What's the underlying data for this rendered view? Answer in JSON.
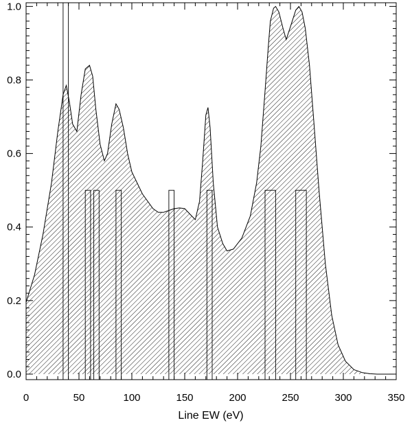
{
  "chart_data": {
    "type": "area",
    "title": "",
    "xlabel": "Line EW (eV)",
    "ylabel": "",
    "xlim": [
      0,
      350
    ],
    "ylim": [
      -0.015,
      1.01
    ],
    "xticks": [
      0,
      50,
      100,
      150,
      200,
      250,
      300,
      350
    ],
    "yticks": [
      0.0,
      0.2,
      0.4,
      0.6,
      0.8,
      1.0
    ],
    "xtick_labels": [
      "0",
      "50",
      "100",
      "150",
      "200",
      "250",
      "300",
      "350"
    ],
    "ytick_labels": [
      "0.0",
      "0.2",
      "0.4",
      "0.6",
      "0.8",
      "1.0"
    ],
    "grid": false,
    "fill": "diagonal-hatch",
    "curve": {
      "x": [
        0,
        8,
        16,
        24,
        30,
        35,
        38,
        41,
        44,
        48,
        52,
        56,
        60,
        63,
        66,
        70,
        74,
        77,
        81,
        85,
        88,
        92,
        96,
        100,
        110,
        120,
        125,
        130,
        135,
        140,
        145,
        150,
        155,
        160,
        164,
        167,
        170,
        172,
        174,
        177,
        181,
        186,
        190,
        196,
        204,
        212,
        218,
        222,
        226,
        229,
        231,
        234,
        236,
        239,
        243,
        246,
        250,
        255,
        258,
        261,
        264,
        268,
        272,
        277,
        283,
        289,
        295,
        302,
        310,
        318,
        325,
        332,
        340,
        348
      ],
      "y": [
        0.195,
        0.27,
        0.38,
        0.52,
        0.66,
        0.76,
        0.785,
        0.74,
        0.68,
        0.66,
        0.76,
        0.83,
        0.84,
        0.81,
        0.72,
        0.625,
        0.58,
        0.6,
        0.68,
        0.735,
        0.72,
        0.67,
        0.6,
        0.55,
        0.49,
        0.45,
        0.44,
        0.44,
        0.445,
        0.45,
        0.452,
        0.45,
        0.435,
        0.42,
        0.47,
        0.58,
        0.705,
        0.725,
        0.67,
        0.52,
        0.4,
        0.355,
        0.335,
        0.34,
        0.37,
        0.43,
        0.52,
        0.62,
        0.77,
        0.89,
        0.96,
        0.995,
        1.0,
        0.985,
        0.94,
        0.91,
        0.945,
        0.99,
        1.0,
        0.985,
        0.94,
        0.84,
        0.69,
        0.5,
        0.3,
        0.16,
        0.08,
        0.035,
        0.012,
        0.004,
        0.001,
        0.0,
        0.0,
        0.0
      ]
    },
    "lines": [
      {
        "x0": 35,
        "x1": 40,
        "height": 1.01
      },
      {
        "x0": 56,
        "x1": 61,
        "height": 0.5
      },
      {
        "x0": 64,
        "x1": 69,
        "height": 0.5
      },
      {
        "x0": 85,
        "x1": 90,
        "height": 0.5
      },
      {
        "x0": 135,
        "x1": 140,
        "height": 0.5
      },
      {
        "x0": 171,
        "x1": 176,
        "height": 0.5
      },
      {
        "x0": 226,
        "x1": 236,
        "height": 0.5
      },
      {
        "x0": 255,
        "x1": 265,
        "height": 0.5
      }
    ]
  }
}
